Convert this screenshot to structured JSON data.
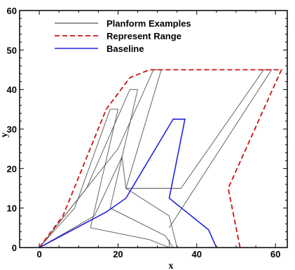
{
  "chart_data": {
    "type": "line",
    "title": "",
    "xlabel": "x",
    "ylabel": "y",
    "xlim": [
      -5,
      63
    ],
    "ylim": [
      0,
      60
    ],
    "xticks": [
      0,
      20,
      40,
      60
    ],
    "yticks": [
      0,
      10,
      20,
      30,
      40,
      50,
      60
    ],
    "grid": false,
    "legend_position": "top-left",
    "series": [
      {
        "name": "Planform Examples",
        "color": "#555555",
        "style": "solid",
        "lines": [
          [
            [
              0,
              0
            ],
            [
              9,
              10
            ],
            [
              18,
              35
            ],
            [
              20,
              35
            ],
            [
              13,
              5
            ],
            [
              28,
              2
            ],
            [
              33,
              0
            ]
          ],
          [
            [
              0,
              0
            ],
            [
              12,
              15
            ],
            [
              23,
              40
            ],
            [
              25,
              40
            ],
            [
              18,
              10
            ],
            [
              32,
              3
            ],
            [
              34,
              0
            ]
          ],
          [
            [
              0,
              0
            ],
            [
              20,
              25
            ],
            [
              29,
              45
            ],
            [
              31,
              45
            ],
            [
              22,
              15
            ],
            [
              33,
              8
            ],
            [
              35,
              0
            ]
          ],
          [
            [
              0,
              0
            ],
            [
              14,
              8
            ],
            [
              21,
              23
            ],
            [
              22,
              15
            ],
            [
              36,
              15
            ],
            [
              57,
              45
            ],
            [
              59,
              45
            ],
            [
              33,
              5
            ]
          ],
          [
            [
              0,
              0
            ],
            [
              33,
              0
            ],
            [
              33,
              2
            ]
          ]
        ]
      },
      {
        "name": "Represent Range",
        "color": "#cc1111",
        "style": "dashed",
        "lines": [
          [
            [
              0,
              0
            ],
            [
              6,
              8
            ],
            [
              17,
              35
            ],
            [
              23,
              43
            ],
            [
              28,
              45
            ],
            [
              61.5,
              45
            ],
            [
              48,
              15
            ],
            [
              51,
              0
            ]
          ]
        ]
      },
      {
        "name": "Baseline",
        "color": "#2222dd",
        "style": "solid",
        "lines": [
          [
            [
              0,
              0
            ],
            [
              17,
              9
            ],
            [
              22,
              12.5
            ],
            [
              34,
              32.5
            ],
            [
              37,
              32.5
            ],
            [
              33,
              12.5
            ],
            [
              43,
              4.5
            ],
            [
              45,
              0
            ]
          ]
        ]
      }
    ]
  }
}
